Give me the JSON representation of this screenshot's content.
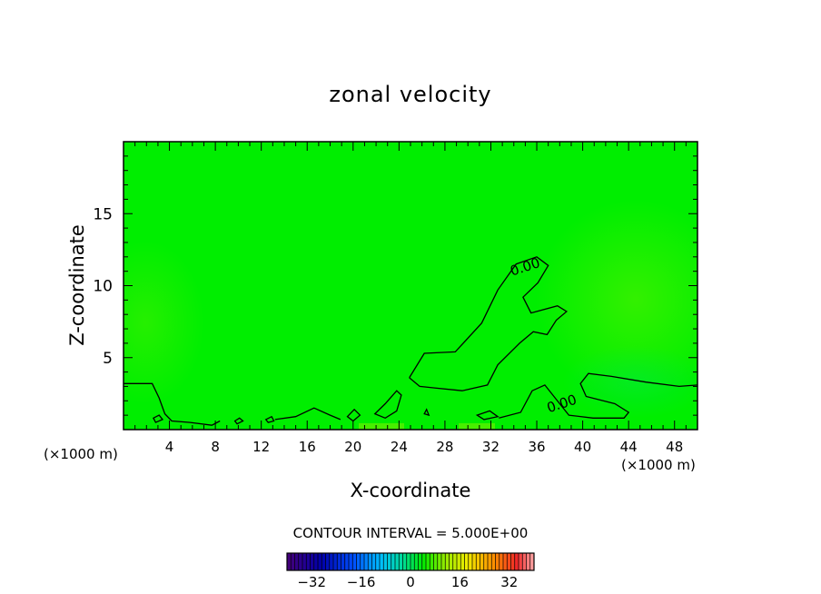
{
  "chart_data": {
    "type": "contour",
    "title": "zonal velocity",
    "xlabel": "X-coordinate",
    "ylabel": "Z-coordinate",
    "x_unit_left": "(×1000 m)",
    "x_unit_right": "(×1000 m)",
    "xlim": [
      0,
      50
    ],
    "ylim": [
      0,
      20
    ],
    "xticks": [
      4,
      8,
      12,
      16,
      20,
      24,
      28,
      32,
      36,
      40,
      44,
      48
    ],
    "yticks": [
      5,
      10,
      15
    ],
    "contour_labels": [
      {
        "text": "0.00",
        "x": 35.1,
        "y": 11.0
      },
      {
        "text": "0.00",
        "x": 38.3,
        "y": 1.5
      }
    ],
    "contour_interval_text": "CONTOUR INTERVAL = 5.000E+00",
    "fill_color": "#00ee00",
    "colorbar": {
      "range": [
        -40,
        40
      ],
      "ticks": [
        -32,
        -16,
        0,
        16,
        32
      ],
      "tick_labels": [
        "−32",
        "−16",
        "0",
        "16",
        "32"
      ]
    },
    "contours": [
      {
        "value": 0,
        "closed": false,
        "points": [
          [
            0,
            3.2
          ],
          [
            2.5,
            3.2
          ],
          [
            3.1,
            2.2
          ],
          [
            3.6,
            1.1
          ],
          [
            4.2,
            0.6
          ],
          [
            5.8,
            0.5
          ],
          [
            7.7,
            0.3
          ],
          [
            8.4,
            0.6
          ]
        ]
      },
      {
        "value": 0,
        "closed": false,
        "points": [
          [
            24.9,
            3.6
          ],
          [
            26.2,
            5.3
          ],
          [
            28.9,
            5.4
          ],
          [
            31.2,
            7.4
          ],
          [
            32.6,
            9.7
          ],
          [
            34.2,
            11.5
          ],
          [
            36.0,
            12.0
          ],
          [
            37.0,
            11.4
          ],
          [
            36.1,
            10.2
          ],
          [
            34.8,
            9.2
          ],
          [
            35.5,
            8.1
          ],
          [
            37.8,
            8.6
          ],
          [
            38.6,
            8.2
          ],
          [
            37.7,
            7.6
          ],
          [
            36.9,
            6.6
          ],
          [
            35.7,
            6.8
          ],
          [
            34.5,
            6.0
          ],
          [
            32.6,
            4.5
          ],
          [
            31.7,
            3.1
          ],
          [
            29.5,
            2.7
          ],
          [
            27.0,
            2.9
          ],
          [
            25.8,
            3.0
          ],
          [
            24.9,
            3.6
          ]
        ]
      },
      {
        "value": 0,
        "closed": false,
        "points": [
          [
            32.7,
            0.8
          ],
          [
            34.6,
            1.2
          ],
          [
            35.6,
            2.7
          ],
          [
            36.7,
            3.1
          ],
          [
            38.0,
            1.8
          ],
          [
            38.8,
            1.0
          ],
          [
            40.9,
            0.8
          ],
          [
            43.6,
            0.8
          ],
          [
            44.0,
            1.2
          ],
          [
            42.8,
            1.8
          ],
          [
            40.3,
            2.3
          ],
          [
            39.8,
            3.2
          ],
          [
            40.5,
            3.9
          ],
          [
            42.5,
            3.7
          ],
          [
            45.5,
            3.3
          ],
          [
            48.4,
            3.0
          ],
          [
            50.0,
            3.1
          ]
        ]
      },
      {
        "value": 0,
        "closed": false,
        "points": [
          [
            13.2,
            0.7
          ],
          [
            15.0,
            0.9
          ],
          [
            16.6,
            1.5
          ],
          [
            18.0,
            1.0
          ],
          [
            18.9,
            0.7
          ]
        ]
      },
      {
        "value": 0,
        "closed": true,
        "points": [
          [
            21.9,
            1.1
          ],
          [
            22.8,
            1.8
          ],
          [
            23.8,
            2.7
          ],
          [
            24.2,
            2.4
          ],
          [
            23.8,
            1.3
          ],
          [
            22.8,
            0.8
          ]
        ]
      },
      {
        "value": 0,
        "closed": true,
        "points": [
          [
            19.5,
            0.9
          ],
          [
            20.1,
            1.4
          ],
          [
            20.6,
            1.0
          ],
          [
            20.0,
            0.6
          ]
        ]
      },
      {
        "value": 0,
        "closed": true,
        "points": [
          [
            2.6,
            0.8
          ],
          [
            3.1,
            1.0
          ],
          [
            3.4,
            0.7
          ],
          [
            2.8,
            0.5
          ]
        ]
      },
      {
        "value": 0,
        "closed": true,
        "points": [
          [
            9.7,
            0.6
          ],
          [
            10.1,
            0.8
          ],
          [
            10.4,
            0.6
          ],
          [
            9.9,
            0.4
          ]
        ]
      },
      {
        "value": 0,
        "closed": true,
        "points": [
          [
            12.4,
            0.7
          ],
          [
            12.9,
            0.9
          ],
          [
            13.1,
            0.6
          ],
          [
            12.6,
            0.5
          ]
        ]
      },
      {
        "value": 0,
        "closed": true,
        "points": [
          [
            26.2,
            1.1
          ],
          [
            26.4,
            1.4
          ],
          [
            26.6,
            1.0
          ]
        ]
      },
      {
        "value": 0,
        "closed": true,
        "points": [
          [
            30.8,
            1.0
          ],
          [
            31.9,
            1.3
          ],
          [
            32.6,
            0.9
          ],
          [
            31.4,
            0.7
          ]
        ]
      }
    ]
  }
}
